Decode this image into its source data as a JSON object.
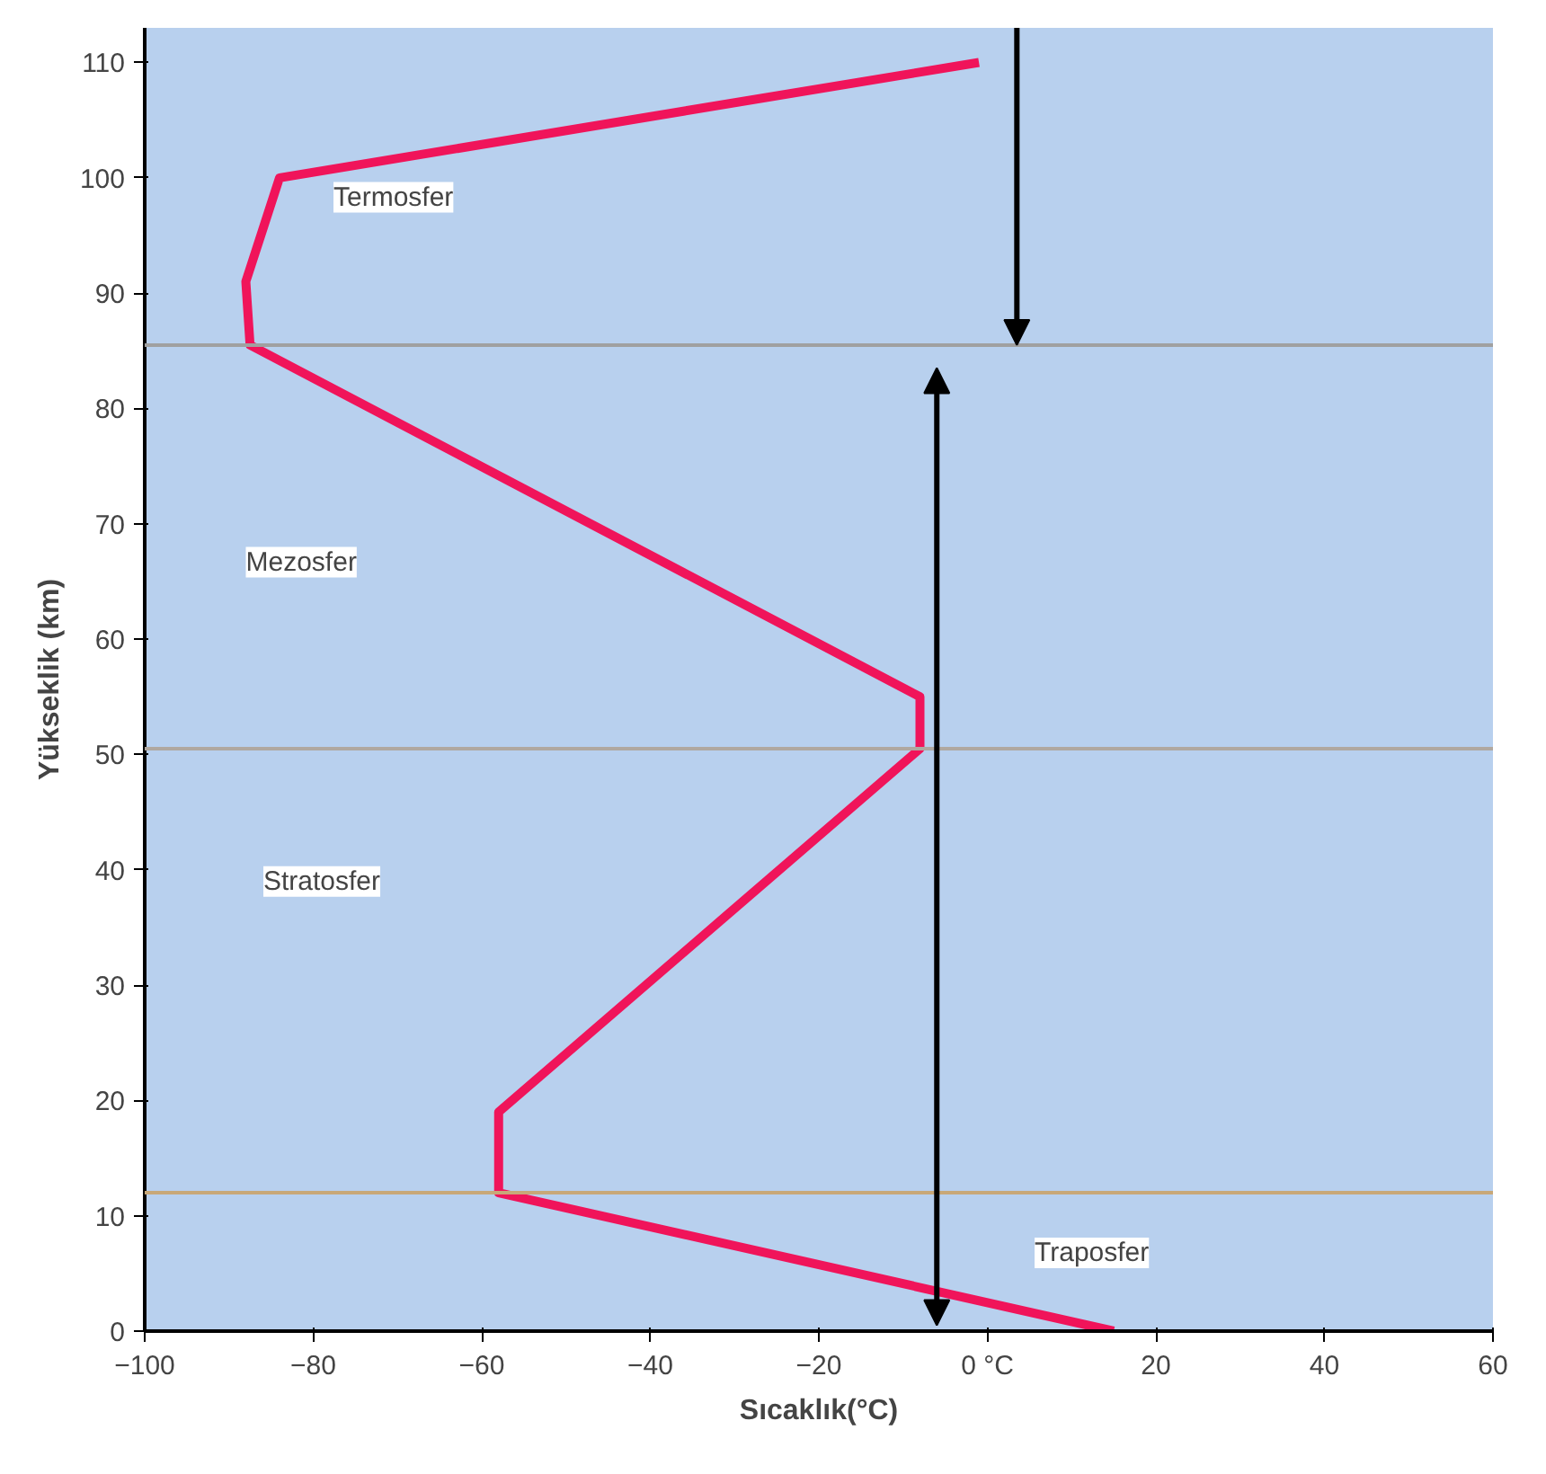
{
  "chart_data": {
    "type": "line",
    "xlabel": "Sıcaklık(°C)",
    "ylabel": "Yükseklik (km)",
    "x": [
      15,
      -58,
      -58,
      -8,
      -8,
      -87.5,
      -88,
      -84,
      -1
    ],
    "series": [
      {
        "color": "#f0145a",
        "values": [
          0,
          12,
          19,
          50.5,
          55,
          85.5,
          91,
          100,
          110
        ]
      }
    ],
    "xlim": [
      -100,
      60
    ],
    "ylim": [
      0,
      113
    ],
    "xticks": [
      -100,
      -80,
      -60,
      -40,
      -20,
      {
        "value": 0,
        "label": "0 °C"
      },
      20,
      40,
      60
    ],
    "yticks": [
      0,
      10,
      20,
      30,
      40,
      50,
      60,
      70,
      80,
      90,
      100,
      110
    ],
    "grid": false,
    "marker": "none",
    "line_style": "solid",
    "ref_lines": [
      {
        "axis": "y",
        "value": 85.5,
        "color": "#a0a0a0"
      },
      {
        "axis": "y",
        "value": 50.5,
        "color": "#b0a8a0"
      },
      {
        "axis": "y",
        "value": 12,
        "color": "#c8a878"
      }
    ],
    "annotations": [
      "Termosfer",
      "Mezosfer",
      "Stratosfer",
      "Traposfer"
    ]
  }
}
